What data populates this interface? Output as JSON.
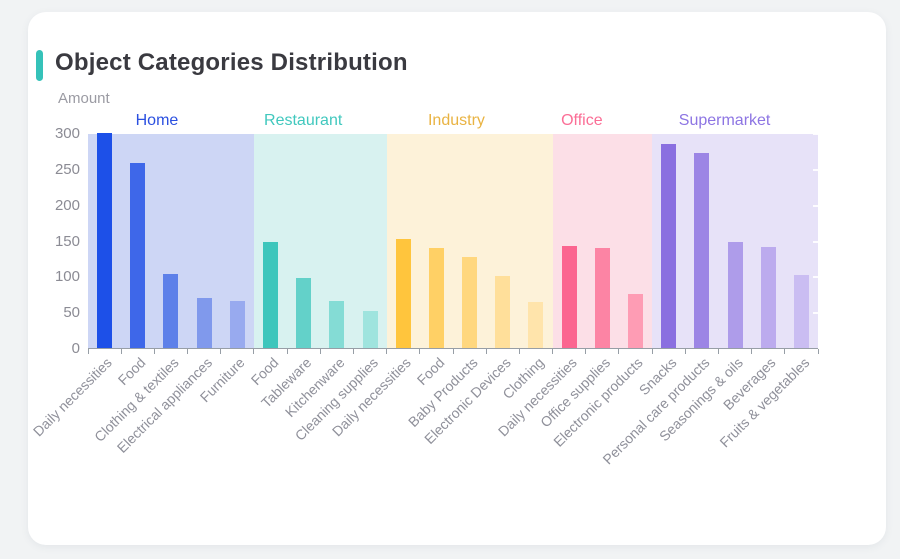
{
  "card": {
    "title": "Object Categories Distribution",
    "accent_color": "#35c2b9"
  },
  "chart_data": {
    "type": "bar",
    "title": "Object Categories Distribution",
    "xlabel": "",
    "ylabel": "Amount",
    "ylim": [
      0,
      300
    ],
    "yticks": [
      0,
      50,
      100,
      150,
      200,
      250,
      300
    ],
    "grid": false,
    "legend_position": "top-inline-group-labels",
    "groups": [
      {
        "name": "Home",
        "label_color": "#2b50e0",
        "band_color": "#cdd6f5",
        "bars": [
          {
            "label": "Daily necessities",
            "value": 300,
            "color": "#1d50e8"
          },
          {
            "label": "Food",
            "value": 258,
            "color": "#3e67e9"
          },
          {
            "label": "Clothing & textiles",
            "value": 103,
            "color": "#5d80e9"
          },
          {
            "label": "Electrical appliances",
            "value": 70,
            "color": "#8099ec"
          },
          {
            "label": "Furniture",
            "value": 65,
            "color": "#98aaef"
          }
        ]
      },
      {
        "name": "Restaurant",
        "label_color": "#41c8be",
        "band_color": "#d8f2f0",
        "bars": [
          {
            "label": "Food",
            "value": 148,
            "color": "#3ec6bc"
          },
          {
            "label": "Tableware",
            "value": 98,
            "color": "#63d1c9"
          },
          {
            "label": "Kitchenware",
            "value": 66,
            "color": "#84dcd5"
          },
          {
            "label": "Cleaning supplies",
            "value": 52,
            "color": "#9fe4de"
          }
        ]
      },
      {
        "name": "Industry",
        "label_color": "#e9b342",
        "band_color": "#fdf2d9",
        "bars": [
          {
            "label": "Daily necessities",
            "value": 152,
            "color": "#ffc53d"
          },
          {
            "label": "Food",
            "value": 139,
            "color": "#ffd065"
          },
          {
            "label": "Baby Products",
            "value": 127,
            "color": "#ffd77e"
          },
          {
            "label": "Electronic Devices",
            "value": 100,
            "color": "#ffdf9a"
          },
          {
            "label": "Clothing",
            "value": 64,
            "color": "#ffe4ab"
          }
        ]
      },
      {
        "name": "Office",
        "label_color": "#fb6e96",
        "band_color": "#fcdfe7",
        "bars": [
          {
            "label": "Daily necessities",
            "value": 143,
            "color": "#fb6590"
          },
          {
            "label": "Office supplies",
            "value": 139,
            "color": "#fc84a4"
          },
          {
            "label": "Electronic products",
            "value": 75,
            "color": "#fe9cb4"
          }
        ]
      },
      {
        "name": "Supermarket",
        "label_color": "#8d75e3",
        "band_color": "#e7e2f8",
        "bars": [
          {
            "label": "Snacks",
            "value": 285,
            "color": "#8a6fe0"
          },
          {
            "label": "Personal care products",
            "value": 272,
            "color": "#9c85e5"
          },
          {
            "label": "Seasonings & oils",
            "value": 148,
            "color": "#ae9cea"
          },
          {
            "label": "Beverages",
            "value": 141,
            "color": "#bcabee"
          },
          {
            "label": "Fruits & vegetables",
            "value": 102,
            "color": "#cabdf2"
          }
        ]
      }
    ]
  }
}
